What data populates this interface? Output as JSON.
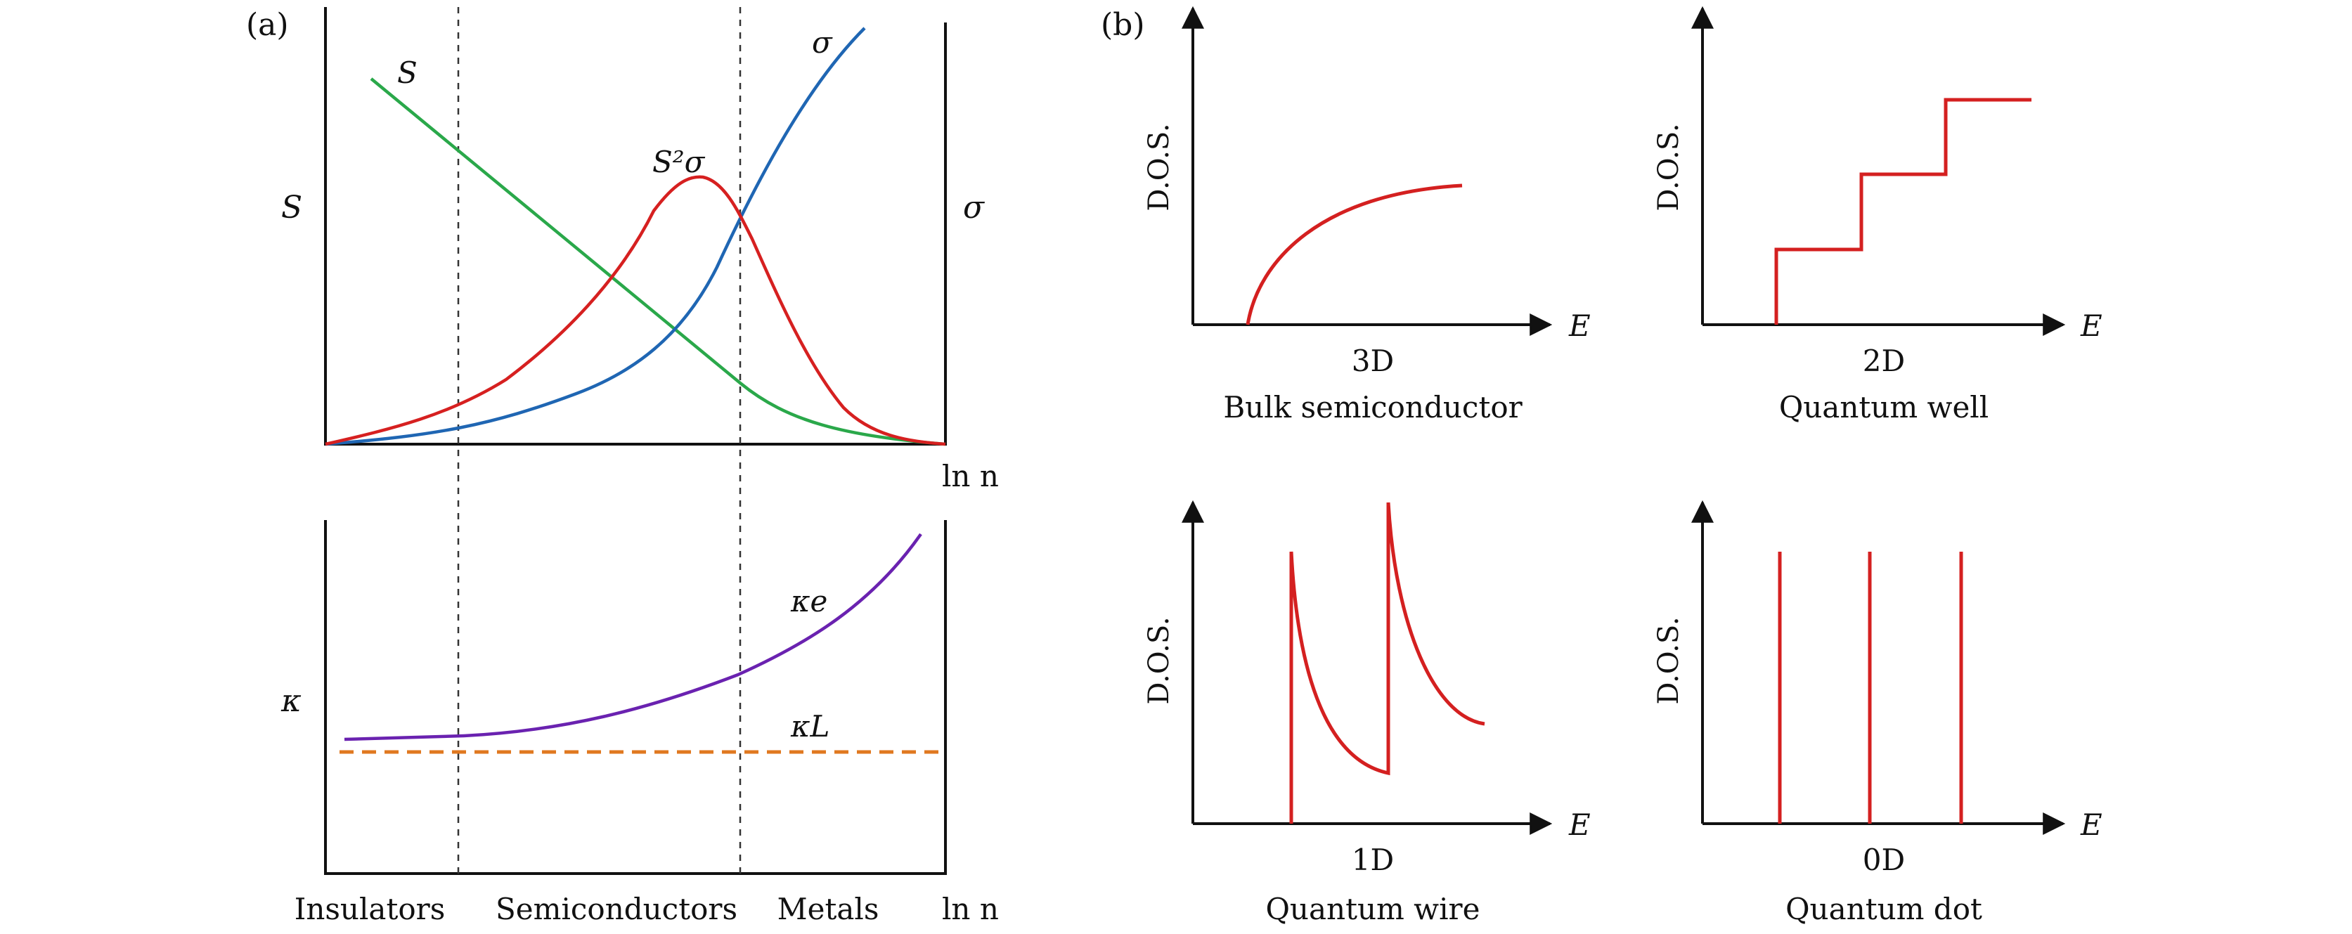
{
  "panel_a": {
    "label": "(a)",
    "top": {
      "left_axis_label": "S",
      "right_axis_label": "σ",
      "x_axis_label": "ln n",
      "curves": [
        {
          "name": "S",
          "label": "S",
          "color": "#2aa84a"
        },
        {
          "name": "sigma",
          "label": "σ",
          "color": "#1f66b3"
        },
        {
          "name": "power-factor",
          "label": "S²σ",
          "color": "#d62020"
        }
      ]
    },
    "bottom": {
      "y_axis_label": "κ",
      "x_axis_label": "ln n",
      "curves": [
        {
          "name": "kappa-e",
          "label": "κe",
          "color": "#6a22b0"
        },
        {
          "name": "kappa-L",
          "label": "κL",
          "color": "#e07820"
        }
      ]
    },
    "regions": [
      "Insulators",
      "Semiconductors",
      "Metals"
    ]
  },
  "panel_b": {
    "label": "(b)",
    "plots": [
      {
        "dimension": "3D",
        "caption": "Bulk semiconductor",
        "y_label": "D.O.S.",
        "x_label": "E"
      },
      {
        "dimension": "2D",
        "caption": "Quantum well",
        "y_label": "D.O.S.",
        "x_label": "E"
      },
      {
        "dimension": "1D",
        "caption": "Quantum wire",
        "y_label": "D.O.S.",
        "x_label": "E"
      },
      {
        "dimension": "0D",
        "caption": "Quantum dot",
        "y_label": "D.O.S.",
        "x_label": "E"
      }
    ],
    "curve_color": "#d42020"
  }
}
